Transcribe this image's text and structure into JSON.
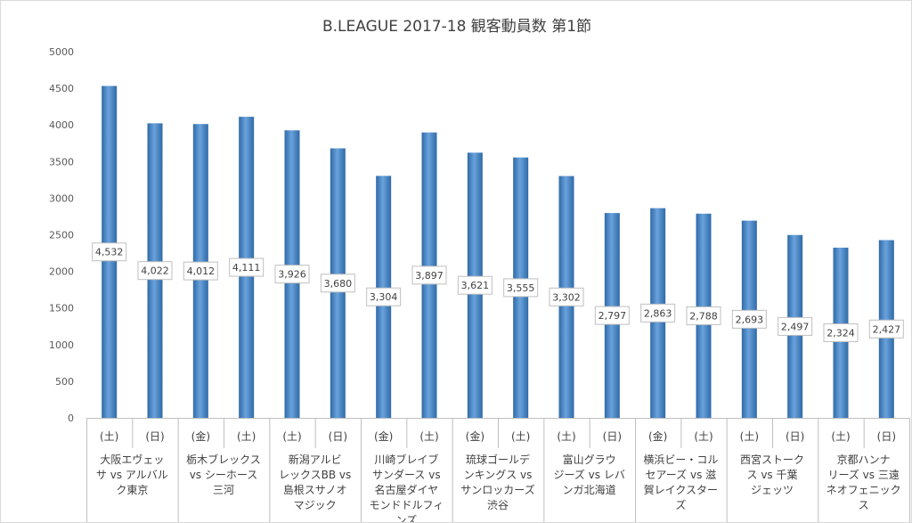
{
  "chart_data": {
    "type": "bar",
    "title": "B.LEAGUE 2017-18 観客動員数 第1節",
    "xlabel": "",
    "ylabel": "",
    "ylim": [
      0,
      5000
    ],
    "yticks": [
      0,
      500,
      1000,
      1500,
      2000,
      2500,
      3000,
      3500,
      4000,
      4500,
      5000
    ],
    "grid": false,
    "legend": "none",
    "bar_color": "#4a86c5",
    "categories": [
      "(土)",
      "(日)",
      "(金)",
      "(土)",
      "(土)",
      "(日)",
      "(金)",
      "(土)",
      "(金)",
      "(土)",
      "(土)",
      "(日)",
      "(金)",
      "(土)",
      "(土)",
      "(日)",
      "(土)",
      "(日)"
    ],
    "values": [
      4532,
      4022,
      4012,
      4111,
      3926,
      3680,
      3304,
      3897,
      3621,
      3555,
      3302,
      2797,
      2863,
      2788,
      2693,
      2497,
      2324,
      2427
    ],
    "data_labels": [
      "4,532",
      "4,022",
      "4,012",
      "4,111",
      "3,926",
      "3,680",
      "3,304",
      "3,897",
      "3,621",
      "3,555",
      "3,302",
      "2,797",
      "2,863",
      "2,788",
      "2,693",
      "2,497",
      "2,324",
      "2,427"
    ],
    "groups": [
      {
        "lines": [
          "大阪エヴェッ",
          "サ vs アルバル",
          "ク東京"
        ]
      },
      {
        "lines": [
          "栃木ブレックス",
          "vs シーホース",
          "三河"
        ]
      },
      {
        "lines": [
          "新潟アルビ",
          "レックスBB vs",
          "島根スサノオ",
          "マジック"
        ]
      },
      {
        "lines": [
          "川崎ブレイブ",
          "サンダース vs",
          "名古屋ダイヤ",
          "モンドドルフィ",
          "ンズ"
        ]
      },
      {
        "lines": [
          "琉球ゴールデ",
          "ンキングス vs",
          "サンロッカーズ",
          "渋谷"
        ]
      },
      {
        "lines": [
          "富山グラウ",
          "ジーズ vs レバ",
          "ンガ北海道"
        ]
      },
      {
        "lines": [
          "横浜ビー・コル",
          "セアーズ vs 滋",
          "賀レイクスター",
          "ズ"
        ]
      },
      {
        "lines": [
          "西宮ストーク",
          "ス vs 千葉",
          "ジェッツ"
        ]
      },
      {
        "lines": [
          "京都ハンナ",
          "リーズ vs 三遠",
          "ネオフェニック",
          "ス"
        ]
      }
    ]
  }
}
